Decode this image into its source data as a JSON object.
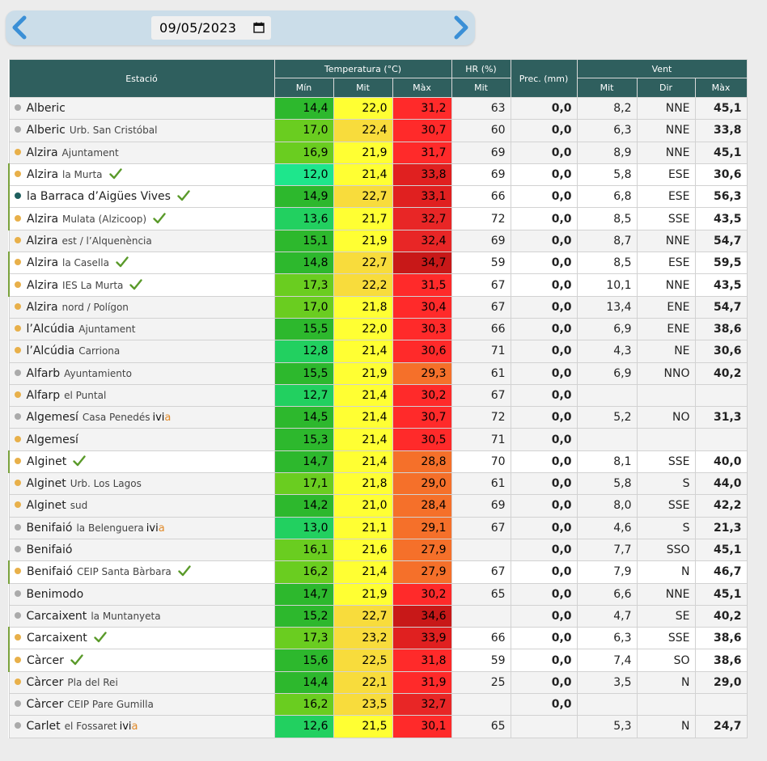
{
  "date_selector": {
    "value": "09/05/2023",
    "prev_icon": "chevron-left-icon",
    "next_icon": "chevron-right-icon",
    "calendar_icon": "calendar-icon"
  },
  "colors": {
    "header_bg": "#2f5f5e",
    "dot_grey": "#aaaaaa",
    "dot_orange": "#e8b04a",
    "dot_teal": "#1f5f5e",
    "check_green": "#5a9a2a",
    "ivia_accent": "#e08a2a"
  },
  "table": {
    "headers": {
      "station": "Estació",
      "temperature": "Temperatura (°C)",
      "humidity": "HR (%)",
      "precipitation": "Prec. (mm)",
      "wind": "Vent",
      "t_min": "Mín",
      "t_mit": "Mit",
      "t_max": "Màx",
      "hr_mit": "Mit",
      "w_mit": "Mit",
      "w_dir": "Dir",
      "w_max": "Màx"
    },
    "rows": [
      {
        "name": "Alberic",
        "sub": "",
        "ivia": false,
        "check": false,
        "dot": "#aaaaaa",
        "hl": false,
        "tmin": "14,4",
        "tmin_c": "#2db82d",
        "tmit": "22,0",
        "tmit_c": "#ffff33",
        "tmax": "31,2",
        "tmax_c": "#ff2a2a",
        "hr": "63",
        "prec": "0,0",
        "wmit": "8,2",
        "wdir": "NNE",
        "wmax": "45,1"
      },
      {
        "name": "Alberic",
        "sub": "Urb. San Cristóbal",
        "ivia": false,
        "check": false,
        "dot": "#aaaaaa",
        "hl": false,
        "tmin": "17,0",
        "tmin_c": "#6acd20",
        "tmit": "22,4",
        "tmit_c": "#f8dc3c",
        "tmax": "30,7",
        "tmax_c": "#ff2a2a",
        "hr": "60",
        "prec": "0,0",
        "wmit": "6,3",
        "wdir": "NNE",
        "wmax": "33,8"
      },
      {
        "name": "Alzira",
        "sub": "Ajuntament",
        "ivia": false,
        "check": false,
        "dot": "#e8b04a",
        "hl": false,
        "tmin": "16,9",
        "tmin_c": "#6acd20",
        "tmit": "21,9",
        "tmit_c": "#ffff33",
        "tmax": "31,7",
        "tmax_c": "#ff2a2a",
        "hr": "69",
        "prec": "0,0",
        "wmit": "8,9",
        "wdir": "NNE",
        "wmax": "45,1"
      },
      {
        "name": "Alzira",
        "sub": "la Murta",
        "ivia": false,
        "check": true,
        "dot": "#e8b04a",
        "hl": true,
        "tmin": "12,0",
        "tmin_c": "#1ee68c",
        "tmit": "21,4",
        "tmit_c": "#ffff33",
        "tmax": "33,8",
        "tmax_c": "#e02020",
        "hr": "69",
        "prec": "0,0",
        "wmit": "5,8",
        "wdir": "ESE",
        "wmax": "30,6"
      },
      {
        "name": "la Barraca d’Aigües Vives",
        "sub": "",
        "ivia": false,
        "check": true,
        "dot": "#1f5f5e",
        "hl": true,
        "tmin": "14,9",
        "tmin_c": "#2db82d",
        "tmit": "22,7",
        "tmit_c": "#f8dc3c",
        "tmax": "33,1",
        "tmax_c": "#e02020",
        "hr": "66",
        "prec": "0,0",
        "wmit": "6,8",
        "wdir": "ESE",
        "wmax": "56,3"
      },
      {
        "name": "Alzira",
        "sub": "Mulata (Alzicoop)",
        "ivia": false,
        "check": true,
        "dot": "#e8b04a",
        "hl": true,
        "tmin": "13,6",
        "tmin_c": "#22d060",
        "tmit": "21,7",
        "tmit_c": "#ffff33",
        "tmax": "32,7",
        "tmax_c": "#e82626",
        "hr": "72",
        "prec": "0,0",
        "wmit": "8,5",
        "wdir": "SSE",
        "wmax": "43,5"
      },
      {
        "name": "Alzira",
        "sub": "est / l’Alquenència",
        "ivia": false,
        "check": false,
        "dot": "#e8b04a",
        "hl": false,
        "tmin": "15,1",
        "tmin_c": "#2db82d",
        "tmit": "21,9",
        "tmit_c": "#ffff33",
        "tmax": "32,4",
        "tmax_c": "#e82626",
        "hr": "69",
        "prec": "0,0",
        "wmit": "8,7",
        "wdir": "NNE",
        "wmax": "54,7"
      },
      {
        "name": "Alzira",
        "sub": "la Casella",
        "ivia": false,
        "check": true,
        "dot": "#e8b04a",
        "hl": true,
        "tmin": "14,8",
        "tmin_c": "#2db82d",
        "tmit": "22,7",
        "tmit_c": "#f8dc3c",
        "tmax": "34,7",
        "tmax_c": "#c81818",
        "hr": "59",
        "prec": "0,0",
        "wmit": "8,5",
        "wdir": "ESE",
        "wmax": "59,5"
      },
      {
        "name": "Alzira",
        "sub": "IES La Murta",
        "ivia": false,
        "check": true,
        "dot": "#e8b04a",
        "hl": true,
        "tmin": "17,3",
        "tmin_c": "#6acd20",
        "tmit": "22,2",
        "tmit_c": "#f8dc3c",
        "tmax": "31,5",
        "tmax_c": "#ff2a2a",
        "hr": "67",
        "prec": "0,0",
        "wmit": "10,1",
        "wdir": "NNE",
        "wmax": "43,5"
      },
      {
        "name": "Alzira",
        "sub": "nord / Polígon",
        "ivia": false,
        "check": false,
        "dot": "#e8b04a",
        "hl": false,
        "tmin": "17,0",
        "tmin_c": "#6acd20",
        "tmit": "21,8",
        "tmit_c": "#ffff33",
        "tmax": "30,4",
        "tmax_c": "#ff2a2a",
        "hr": "67",
        "prec": "0,0",
        "wmit": "13,4",
        "wdir": "ENE",
        "wmax": "54,7"
      },
      {
        "name": "l’Alcúdia",
        "sub": "Ajuntament",
        "ivia": false,
        "check": false,
        "dot": "#e8b04a",
        "hl": false,
        "tmin": "15,5",
        "tmin_c": "#2db82d",
        "tmit": "22,0",
        "tmit_c": "#ffff33",
        "tmax": "30,3",
        "tmax_c": "#ff2a2a",
        "hr": "66",
        "prec": "0,0",
        "wmit": "6,9",
        "wdir": "ENE",
        "wmax": "38,6"
      },
      {
        "name": "l’Alcúdia",
        "sub": "Carriona",
        "ivia": false,
        "check": false,
        "dot": "#e8b04a",
        "hl": false,
        "tmin": "12,8",
        "tmin_c": "#22d060",
        "tmit": "21,4",
        "tmit_c": "#ffff33",
        "tmax": "30,6",
        "tmax_c": "#ff2a2a",
        "hr": "71",
        "prec": "0,0",
        "wmit": "4,3",
        "wdir": "NE",
        "wmax": "30,6"
      },
      {
        "name": "Alfarb",
        "sub": "Ayuntamiento",
        "ivia": false,
        "check": false,
        "dot": "#aaaaaa",
        "hl": false,
        "tmin": "15,5",
        "tmin_c": "#2db82d",
        "tmit": "21,9",
        "tmit_c": "#ffff33",
        "tmax": "29,3",
        "tmax_c": "#f5702a",
        "hr": "61",
        "prec": "0,0",
        "wmit": "6,9",
        "wdir": "NNO",
        "wmax": "40,2"
      },
      {
        "name": "Alfarp",
        "sub": "el Puntal",
        "ivia": false,
        "check": false,
        "dot": "#e8b04a",
        "hl": false,
        "tmin": "12,7",
        "tmin_c": "#22d060",
        "tmit": "21,4",
        "tmit_c": "#ffff33",
        "tmax": "30,2",
        "tmax_c": "#ff2a2a",
        "hr": "67",
        "prec": "0,0",
        "wmit": "",
        "wdir": "",
        "wmax": ""
      },
      {
        "name": "Algemesí",
        "sub": "Casa Penedés",
        "ivia": true,
        "check": false,
        "dot": "#aaaaaa",
        "hl": false,
        "tmin": "14,5",
        "tmin_c": "#2db82d",
        "tmit": "21,4",
        "tmit_c": "#ffff33",
        "tmax": "30,7",
        "tmax_c": "#ff2a2a",
        "hr": "72",
        "prec": "0,0",
        "wmit": "5,2",
        "wdir": "NO",
        "wmax": "31,3"
      },
      {
        "name": "Algemesí",
        "sub": "",
        "ivia": false,
        "check": false,
        "dot": "#e8b04a",
        "hl": false,
        "tmin": "15,3",
        "tmin_c": "#2db82d",
        "tmit": "21,4",
        "tmit_c": "#ffff33",
        "tmax": "30,5",
        "tmax_c": "#ff2a2a",
        "hr": "71",
        "prec": "0,0",
        "wmit": "",
        "wdir": "",
        "wmax": ""
      },
      {
        "name": "Alginet",
        "sub": "",
        "ivia": false,
        "check": true,
        "dot": "#e8b04a",
        "hl": true,
        "tmin": "14,7",
        "tmin_c": "#2db82d",
        "tmit": "21,4",
        "tmit_c": "#ffff33",
        "tmax": "28,8",
        "tmax_c": "#f5702a",
        "hr": "70",
        "prec": "0,0",
        "wmit": "8,1",
        "wdir": "SSE",
        "wmax": "40,0"
      },
      {
        "name": "Alginet",
        "sub": "Urb. Los Lagos",
        "ivia": false,
        "check": false,
        "dot": "#e8b04a",
        "hl": false,
        "tmin": "17,1",
        "tmin_c": "#6acd20",
        "tmit": "21,8",
        "tmit_c": "#ffff33",
        "tmax": "29,0",
        "tmax_c": "#f5702a",
        "hr": "61",
        "prec": "0,0",
        "wmit": "5,8",
        "wdir": "S",
        "wmax": "44,0"
      },
      {
        "name": "Alginet",
        "sub": "sud",
        "ivia": false,
        "check": false,
        "dot": "#e8b04a",
        "hl": false,
        "tmin": "14,2",
        "tmin_c": "#2db82d",
        "tmit": "21,0",
        "tmit_c": "#ffff33",
        "tmax": "28,4",
        "tmax_c": "#f5702a",
        "hr": "69",
        "prec": "0,0",
        "wmit": "8,0",
        "wdir": "SSE",
        "wmax": "42,2"
      },
      {
        "name": "Benifaió",
        "sub": "la Belenguera",
        "ivia": true,
        "check": false,
        "dot": "#aaaaaa",
        "hl": false,
        "tmin": "13,0",
        "tmin_c": "#22d060",
        "tmit": "21,1",
        "tmit_c": "#ffff33",
        "tmax": "29,1",
        "tmax_c": "#f5702a",
        "hr": "67",
        "prec": "0,0",
        "wmit": "4,6",
        "wdir": "S",
        "wmax": "21,3"
      },
      {
        "name": "Benifaió",
        "sub": "",
        "ivia": false,
        "check": false,
        "dot": "#aaaaaa",
        "hl": false,
        "tmin": "16,1",
        "tmin_c": "#6acd20",
        "tmit": "21,6",
        "tmit_c": "#ffff33",
        "tmax": "27,9",
        "tmax_c": "#f5702a",
        "hr": "",
        "prec": "0,0",
        "wmit": "7,7",
        "wdir": "SSO",
        "wmax": "45,1"
      },
      {
        "name": "Benifaió",
        "sub": "CEIP Santa Bàrbara",
        "ivia": false,
        "check": true,
        "dot": "#e8b04a",
        "hl": true,
        "tmin": "16,2",
        "tmin_c": "#6acd20",
        "tmit": "21,4",
        "tmit_c": "#ffff33",
        "tmax": "27,9",
        "tmax_c": "#f5702a",
        "hr": "67",
        "prec": "0,0",
        "wmit": "7,9",
        "wdir": "N",
        "wmax": "46,7"
      },
      {
        "name": "Benimodo",
        "sub": "",
        "ivia": false,
        "check": false,
        "dot": "#aaaaaa",
        "hl": false,
        "tmin": "14,7",
        "tmin_c": "#2db82d",
        "tmit": "21,9",
        "tmit_c": "#ffff33",
        "tmax": "30,2",
        "tmax_c": "#ff2a2a",
        "hr": "65",
        "prec": "0,0",
        "wmit": "6,6",
        "wdir": "NNE",
        "wmax": "45,1"
      },
      {
        "name": "Carcaixent",
        "sub": "la Muntanyeta",
        "ivia": false,
        "check": false,
        "dot": "#aaaaaa",
        "hl": false,
        "tmin": "15,2",
        "tmin_c": "#2db82d",
        "tmit": "22,7",
        "tmit_c": "#f8dc3c",
        "tmax": "34,6",
        "tmax_c": "#c81818",
        "hr": "",
        "prec": "0,0",
        "wmit": "4,7",
        "wdir": "SE",
        "wmax": "40,2"
      },
      {
        "name": "Carcaixent",
        "sub": "",
        "ivia": false,
        "check": true,
        "dot": "#e8b04a",
        "hl": true,
        "tmin": "17,3",
        "tmin_c": "#6acd20",
        "tmit": "23,2",
        "tmit_c": "#f8dc3c",
        "tmax": "33,9",
        "tmax_c": "#e02020",
        "hr": "66",
        "prec": "0,0",
        "wmit": "6,3",
        "wdir": "SSE",
        "wmax": "38,6"
      },
      {
        "name": "Càrcer",
        "sub": "",
        "ivia": false,
        "check": true,
        "dot": "#e8b04a",
        "hl": true,
        "tmin": "15,6",
        "tmin_c": "#2db82d",
        "tmit": "22,5",
        "tmit_c": "#f8dc3c",
        "tmax": "31,8",
        "tmax_c": "#ff2a2a",
        "hr": "59",
        "prec": "0,0",
        "wmit": "7,4",
        "wdir": "SO",
        "wmax": "38,6"
      },
      {
        "name": "Càrcer",
        "sub": "Pla del Rei",
        "ivia": false,
        "check": false,
        "dot": "#e8b04a",
        "hl": false,
        "tmin": "14,4",
        "tmin_c": "#2db82d",
        "tmit": "22,1",
        "tmit_c": "#f8dc3c",
        "tmax": "31,9",
        "tmax_c": "#ff2a2a",
        "hr": "25",
        "prec": "0,0",
        "wmit": "3,5",
        "wdir": "N",
        "wmax": "29,0"
      },
      {
        "name": "Càrcer",
        "sub": "CEIP Pare Gumilla",
        "ivia": false,
        "check": false,
        "dot": "#aaaaaa",
        "hl": false,
        "tmin": "16,2",
        "tmin_c": "#6acd20",
        "tmit": "23,5",
        "tmit_c": "#f8dc3c",
        "tmax": "32,7",
        "tmax_c": "#e82626",
        "hr": "",
        "prec": "0,0",
        "wmit": "",
        "wdir": "",
        "wmax": ""
      },
      {
        "name": "Carlet",
        "sub": "el Fossaret",
        "ivia": true,
        "check": false,
        "dot": "#aaaaaa",
        "hl": false,
        "tmin": "12,6",
        "tmin_c": "#22d060",
        "tmit": "21,5",
        "tmit_c": "#ffff33",
        "tmax": "30,1",
        "tmax_c": "#ff2a2a",
        "hr": "65",
        "prec": "",
        "wmit": "5,3",
        "wdir": "N",
        "wmax": "24,7"
      }
    ],
    "ivia_label_main": "ivi",
    "ivia_label_accent": "a"
  }
}
